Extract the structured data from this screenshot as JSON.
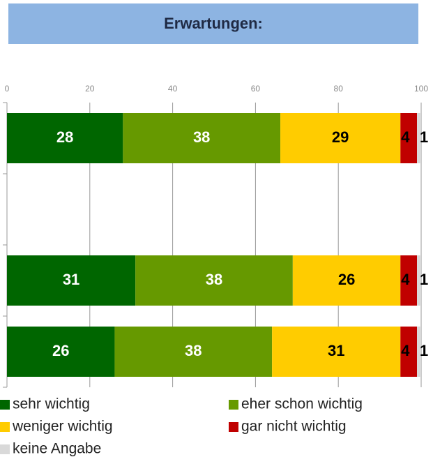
{
  "chart_data": {
    "type": "stacked-barh",
    "title": "Erwartungen:",
    "categories": [
      null,
      null,
      null,
      null
    ],
    "series": [
      {
        "name": "sehr wichtig",
        "color": "#006600",
        "values": [
          28,
          null,
          31,
          26
        ]
      },
      {
        "name": "eher schon wichtig",
        "color": "#669900",
        "values": [
          38,
          null,
          38,
          38
        ]
      },
      {
        "name": "weniger wichtig",
        "color": "#ffcc00",
        "values": [
          29,
          null,
          26,
          31
        ]
      },
      {
        "name": "gar nicht wichtig",
        "color": "#c00000",
        "values": [
          4,
          null,
          4,
          4
        ]
      },
      {
        "name": "keine Angabe",
        "color": "#d9d9d9",
        "values": [
          1,
          null,
          1,
          1
        ]
      }
    ],
    "xlim": [
      0,
      100
    ],
    "xticks": [
      0,
      20,
      40,
      60,
      80,
      100
    ],
    "grid": true
  }
}
